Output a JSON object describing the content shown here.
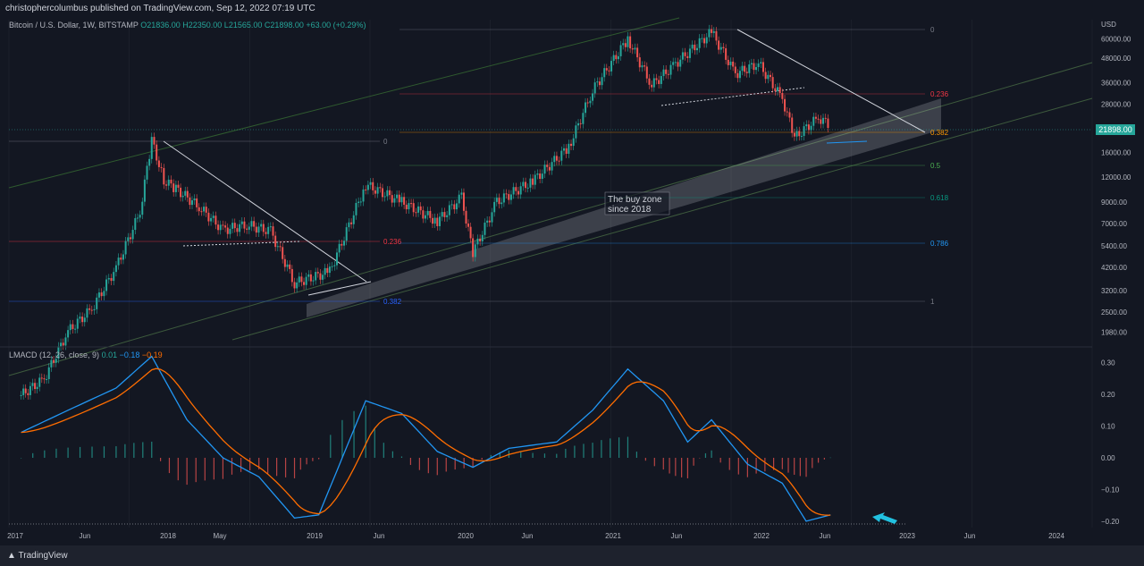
{
  "header": {
    "published_by": "christophercolumbus published on TradingView.com, Sep 12, 2022 07:19 UTC"
  },
  "symbol_legend": {
    "title": "Bitcoin / U.S. Dollar, 1W, BITSTAMP",
    "ohlc": "O21836.00  H22350.00  L21565.00  C21898.00  +63.00 (+0.29%)"
  },
  "macd_legend": {
    "title": "LMACD (12, 26, close, 9)",
    "hist": "0.01",
    "macd": "−0.18",
    "signal": "−0.19"
  },
  "footer": {
    "brand": "TradingView",
    "logo_icon": "tradingview-logo-icon"
  },
  "chart_data": [
    {
      "type": "candlestick",
      "title": "Bitcoin / U.S. Dollar, 1W, BITSTAMP",
      "y_scale": "log",
      "currency": "USD",
      "y_ticks": [
        "60000.00",
        "48000.00",
        "36000.00",
        "28000.00",
        "21898.00",
        "16000.00",
        "12000.00",
        "9000.00",
        "7000.00",
        "5400.00",
        "4200.00",
        "3200.00",
        "2500.00",
        "1980.00"
      ],
      "current_price": "21898.00",
      "x_ticks": [
        "2017",
        "Jun",
        "2018",
        "May",
        "2019",
        "Jun",
        "2020",
        "Jun",
        "2021",
        "Jun",
        "2022",
        "Jun",
        "2023",
        "Jun",
        "2024"
      ],
      "ylim": [
        1700,
        75000
      ],
      "price_path": [
        {
          "d": "2017-01",
          "p": 950
        },
        {
          "d": "2017-03",
          "p": 1150
        },
        {
          "d": "2017-05",
          "p": 2000
        },
        {
          "d": "2017-07",
          "p": 2600
        },
        {
          "d": "2017-09",
          "p": 4200
        },
        {
          "d": "2017-11",
          "p": 8000
        },
        {
          "d": "2017-12",
          "p": 18500
        },
        {
          "d": "2018-01",
          "p": 11500
        },
        {
          "d": "2018-02",
          "p": 10500
        },
        {
          "d": "2018-04",
          "p": 8500
        },
        {
          "d": "2018-06",
          "p": 6500
        },
        {
          "d": "2018-08",
          "p": 6900
        },
        {
          "d": "2018-10",
          "p": 6400
        },
        {
          "d": "2018-12",
          "p": 3500
        },
        {
          "d": "2019-03",
          "p": 4000
        },
        {
          "d": "2019-06",
          "p": 11000
        },
        {
          "d": "2019-09",
          "p": 9000
        },
        {
          "d": "2019-12",
          "p": 7200
        },
        {
          "d": "2020-02",
          "p": 9500
        },
        {
          "d": "2020-03",
          "p": 5000
        },
        {
          "d": "2020-05",
          "p": 9000
        },
        {
          "d": "2020-08",
          "p": 11500
        },
        {
          "d": "2020-11",
          "p": 17000
        },
        {
          "d": "2021-01",
          "p": 33000
        },
        {
          "d": "2021-04",
          "p": 60000
        },
        {
          "d": "2021-06",
          "p": 35000
        },
        {
          "d": "2021-08",
          "p": 45000
        },
        {
          "d": "2021-11",
          "p": 65000
        },
        {
          "d": "2022-01",
          "p": 40000
        },
        {
          "d": "2022-03",
          "p": 45000
        },
        {
          "d": "2022-05",
          "p": 30000
        },
        {
          "d": "2022-06",
          "p": 19000
        },
        {
          "d": "2022-08",
          "p": 24000
        },
        {
          "d": "2022-09",
          "p": 21898
        }
      ],
      "fib_levels_2018": [
        {
          "label": "0",
          "color": "#787b86"
        },
        {
          "label": "0.236",
          "color": "#f23645"
        },
        {
          "label": "0.382",
          "color": "#2962ff"
        }
      ],
      "fib_levels_2021": [
        {
          "label": "0",
          "color": "#787b86"
        },
        {
          "label": "0.236",
          "color": "#f23645"
        },
        {
          "label": "0.382",
          "color": "#ff9800"
        },
        {
          "label": "0.5",
          "color": "#4caf50"
        },
        {
          "label": "0.618",
          "color": "#089981"
        },
        {
          "label": "0.786",
          "color": "#2196f3"
        },
        {
          "label": "1",
          "color": "#787b86"
        }
      ],
      "annotation": "The buy zone\nsince 2018"
    },
    {
      "type": "line",
      "title": "LMACD (12, 26, close, 9)",
      "y_ticks": [
        "0.30",
        "0.20",
        "0.10",
        "0.00",
        "−0.10",
        "−0.20"
      ],
      "ylim": [
        -0.22,
        0.33
      ],
      "series": [
        {
          "name": "MACD",
          "color": "#2196f3"
        },
        {
          "name": "Signal",
          "color": "#ff6d00"
        },
        {
          "name": "Histogram",
          "color": "#26a69a"
        }
      ],
      "macd_path": [
        {
          "d": "2017-01",
          "v": 0.08
        },
        {
          "d": "2017-05",
          "v": 0.15
        },
        {
          "d": "2017-09",
          "v": 0.22
        },
        {
          "d": "2017-12",
          "v": 0.32
        },
        {
          "d": "2018-03",
          "v": 0.12
        },
        {
          "d": "2018-06",
          "v": 0.0
        },
        {
          "d": "2018-09",
          "v": -0.06
        },
        {
          "d": "2018-12",
          "v": -0.19
        },
        {
          "d": "2019-02",
          "v": -0.18
        },
        {
          "d": "2019-06",
          "v": 0.18
        },
        {
          "d": "2019-09",
          "v": 0.14
        },
        {
          "d": "2019-12",
          "v": 0.02
        },
        {
          "d": "2020-03",
          "v": -0.03
        },
        {
          "d": "2020-06",
          "v": 0.03
        },
        {
          "d": "2020-10",
          "v": 0.05
        },
        {
          "d": "2021-01",
          "v": 0.15
        },
        {
          "d": "2021-04",
          "v": 0.28
        },
        {
          "d": "2021-07",
          "v": 0.18
        },
        {
          "d": "2021-09",
          "v": 0.05
        },
        {
          "d": "2021-11",
          "v": 0.12
        },
        {
          "d": "2022-02",
          "v": -0.02
        },
        {
          "d": "2022-05",
          "v": -0.08
        },
        {
          "d": "2022-07",
          "v": -0.2
        },
        {
          "d": "2022-09",
          "v": -0.18
        }
      ]
    }
  ],
  "colors": {
    "background": "#131722",
    "up": "#26a69a",
    "down": "#ef5350",
    "grid": "#2a2e39",
    "buy_zone": "#d1d4dc",
    "macd": "#2196f3",
    "signal": "#ff6d00",
    "arrow": "#22c1e0"
  }
}
